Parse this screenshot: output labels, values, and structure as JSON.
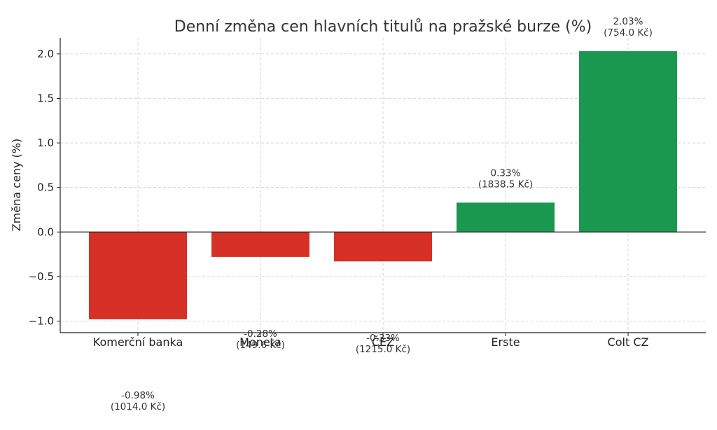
{
  "chart_data": {
    "type": "bar",
    "title": "Denní změna cen hlavních titulů na pražské burze (%)",
    "xlabel": "",
    "ylabel": "Změna ceny (%)",
    "categories": [
      "Komerční banka",
      "Moneta",
      "ČEZ",
      "Erste",
      "Colt CZ"
    ],
    "values": [
      -0.98,
      -0.28,
      -0.33,
      0.33,
      2.03
    ],
    "value_labels": [
      "-0.98%",
      "-0.28%",
      "-0.33%",
      "0.33%",
      "2.03%"
    ],
    "price_labels": [
      "(1014.0 Kč)",
      "(149.6 Kč)",
      "(1215.0 Kč)",
      "(1838.5 Kč)",
      "(754.0 Kč)"
    ],
    "ylim": [
      -1.13,
      2.18
    ],
    "yticks": [
      -1.0,
      -0.5,
      0.0,
      0.5,
      1.0,
      1.5,
      2.0
    ],
    "ytick_labels": [
      "−1.0",
      "−0.5",
      "0.0",
      "0.5",
      "1.0",
      "1.5",
      "2.0"
    ],
    "grid": true,
    "colors": {
      "negative": "#d73027",
      "positive": "#1a9850"
    }
  }
}
